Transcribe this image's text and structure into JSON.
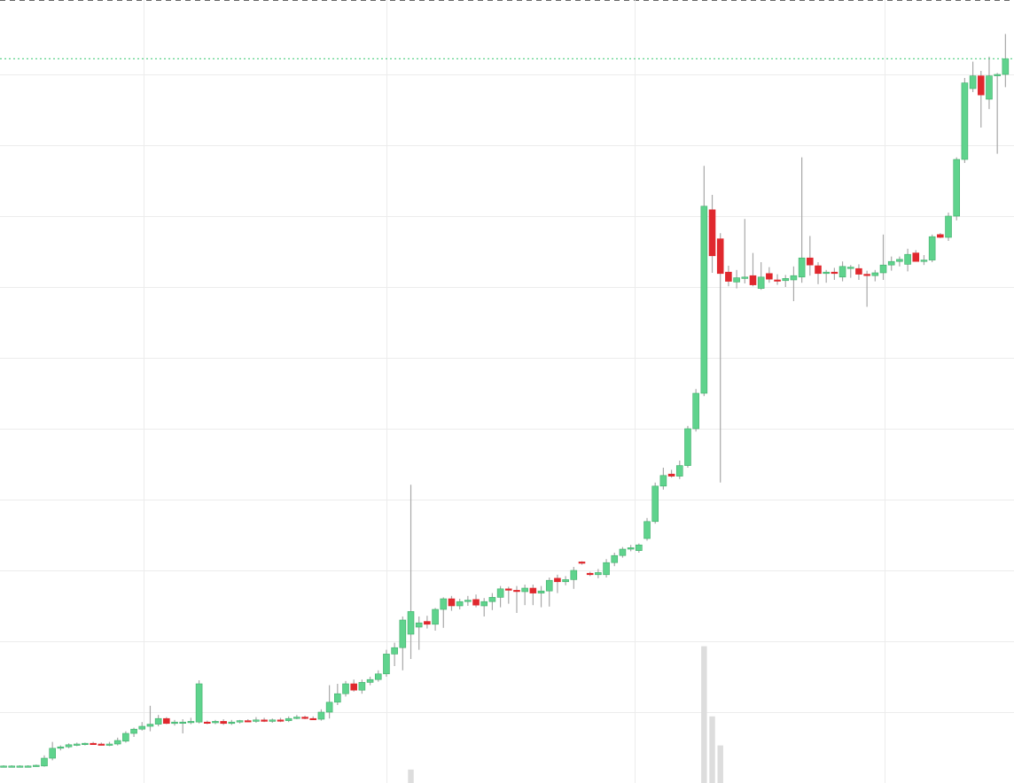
{
  "chart_data": {
    "type": "candlestick",
    "x": [
      0,
      1,
      2,
      3,
      4,
      5,
      6,
      7,
      8,
      9,
      10,
      11,
      12,
      13,
      14,
      15,
      16,
      17,
      18,
      19,
      20,
      21,
      22,
      23,
      24,
      25,
      26,
      27,
      28,
      29,
      30,
      31,
      32,
      33,
      34,
      35,
      36,
      37,
      38,
      39,
      40,
      41,
      42,
      43,
      44,
      45,
      46,
      47,
      48,
      49,
      50,
      51,
      52,
      53,
      54,
      55,
      56,
      57,
      58,
      59,
      60,
      61,
      62,
      63,
      64,
      65,
      66,
      67,
      68,
      69,
      70,
      71,
      72,
      73,
      74,
      75,
      76,
      77,
      78,
      79,
      80,
      81,
      82,
      83,
      84,
      85,
      86,
      87,
      88,
      89,
      90,
      91,
      92,
      93,
      94,
      95,
      96,
      97,
      98,
      99,
      100,
      101,
      102,
      103,
      104,
      105,
      106,
      107,
      108,
      109,
      110,
      111,
      112,
      113,
      114,
      115,
      116,
      117,
      118,
      119,
      120,
      121,
      122,
      123
    ],
    "open": [
      2.4,
      2.4,
      2.4,
      2.4,
      2.4,
      2.4,
      3.5,
      4.9,
      5.1,
      5.4,
      5.5,
      5.6,
      5.5,
      5.4,
      5.5,
      5.9,
      7.0,
      7.6,
      8.0,
      8.3,
      9.1,
      8.4,
      8.6,
      8.6,
      8.6,
      8.6,
      8.5,
      8.7,
      8.4,
      8.6,
      8.8,
      8.7,
      8.9,
      8.7,
      8.9,
      8.8,
      9.1,
      9.3,
      9.1,
      9.0,
      10.0,
      11.4,
      12.6,
      14.0,
      13.1,
      14.2,
      14.6,
      15.4,
      18.2,
      19.1,
      21.0,
      22.0,
      22.8,
      22.4,
      24.5,
      26.0,
      25.0,
      25.6,
      25.9,
      25.0,
      25.6,
      26.2,
      27.4,
      27.2,
      27.0,
      27.5,
      26.8,
      27.1,
      28.9,
      28.4,
      28.7,
      31.2,
      29.6,
      29.4,
      29.4,
      31.1,
      32.1,
      33.0,
      32.8,
      34.5,
      36.9,
      41.9,
      43.6,
      43.3,
      44.8,
      50.0,
      55.0,
      80.9,
      76.8,
      72.1,
      70.7,
      71.2,
      71.6,
      69.8,
      71.9,
      71.0,
      70.9,
      71.0,
      71.4,
      74.1,
      73.0,
      71.9,
      72.1,
      71.4,
      72.6,
      72.6,
      71.8,
      71.6,
      72.0,
      73.1,
      73.6,
      73.2,
      74.8,
      73.6,
      73.8,
      77.4,
      77.0,
      80.0,
      88.0,
      98.0,
      99.8,
      96.5,
      99.8,
      100.0
    ],
    "high": [
      2.5,
      2.5,
      2.5,
      2.5,
      2.6,
      3.9,
      5.8,
      5.3,
      5.6,
      5.7,
      5.7,
      5.8,
      5.7,
      5.8,
      6.4,
      7.3,
      7.8,
      8.6,
      10.9,
      9.6,
      9.3,
      8.9,
      9.0,
      9.2,
      14.5,
      8.8,
      8.9,
      9.0,
      8.9,
      8.9,
      9.0,
      9.3,
      9.2,
      9.1,
      9.2,
      9.4,
      9.6,
      9.5,
      9.4,
      10.4,
      13.8,
      14.0,
      14.4,
      14.6,
      14.6,
      15.0,
      15.9,
      18.8,
      19.8,
      23.5,
      42.1,
      23.5,
      23.6,
      24.7,
      26.2,
      26.4,
      26.0,
      26.4,
      26.6,
      26.1,
      26.8,
      27.8,
      27.7,
      27.8,
      28.0,
      28.0,
      27.8,
      29.0,
      29.4,
      29.2,
      30.5,
      31.3,
      29.8,
      30.2,
      31.6,
      32.5,
      33.3,
      33.6,
      33.8,
      37.4,
      42.4,
      44.5,
      44.2,
      45.5,
      50.4,
      55.6,
      87.1,
      83.0,
      77.6,
      73.0,
      72.4,
      79.6,
      74.8,
      73.5,
      72.8,
      71.8,
      71.7,
      72.9,
      88.3,
      77.2,
      73.5,
      72.4,
      72.7,
      73.6,
      73.1,
      73.2,
      72.3,
      72.4,
      77.4,
      74.3,
      74.3,
      75.4,
      75.2,
      74.5,
      77.4,
      77.6,
      80.5,
      88.3,
      99.5,
      101.8,
      100.5,
      102.5,
      100.2,
      105.7
    ],
    "low": [
      2.3,
      2.3,
      2.3,
      2.3,
      2.3,
      2.3,
      3.2,
      4.6,
      4.9,
      5.2,
      5.3,
      5.4,
      5.3,
      5.2,
      5.3,
      5.7,
      6.5,
      7.4,
      7.3,
      8.0,
      8.3,
      8.1,
      7.0,
      8.3,
      8.4,
      8.3,
      8.3,
      8.2,
      8.2,
      8.4,
      8.6,
      8.5,
      8.6,
      8.5,
      8.6,
      8.6,
      9.0,
      9.0,
      8.9,
      8.8,
      9.1,
      11.0,
      12.2,
      12.9,
      12.6,
      13.8,
      14.3,
      15.0,
      16.5,
      15.9,
      17.5,
      18.8,
      21.8,
      21.5,
      21.9,
      24.3,
      24.5,
      25.0,
      24.8,
      23.5,
      24.4,
      24.8,
      25.3,
      24.0,
      25.1,
      25.1,
      24.8,
      24.9,
      26.8,
      27.9,
      27.4,
      30.8,
      29.2,
      28.9,
      29.0,
      30.6,
      31.8,
      32.7,
      32.5,
      34.2,
      36.6,
      41.4,
      43.1,
      42.9,
      44.5,
      49.6,
      54.6,
      72.0,
      42.4,
      70.1,
      69.8,
      70.5,
      70.1,
      69.6,
      70.6,
      70.3,
      70.0,
      68.0,
      70.6,
      71.6,
      70.4,
      70.6,
      71.0,
      70.8,
      71.3,
      71.0,
      67.2,
      70.8,
      71.0,
      72.3,
      72.9,
      72.2,
      73.6,
      73.1,
      73.5,
      76.9,
      76.5,
      79.4,
      87.5,
      97.5,
      92.5,
      95.1,
      88.8,
      98.2
    ],
    "close": [
      2.4,
      2.4,
      2.4,
      2.4,
      2.5,
      3.5,
      4.9,
      5.1,
      5.4,
      5.5,
      5.6,
      5.5,
      5.4,
      5.5,
      6.0,
      7.0,
      7.6,
      8.0,
      8.3,
      9.1,
      8.4,
      8.6,
      8.6,
      8.7,
      14.0,
      8.5,
      8.7,
      8.4,
      8.6,
      8.8,
      8.7,
      8.9,
      8.7,
      8.9,
      8.8,
      9.1,
      9.3,
      9.1,
      9.0,
      10.0,
      11.4,
      12.6,
      14.0,
      13.1,
      14.2,
      14.6,
      15.4,
      18.2,
      19.1,
      23.0,
      24.2,
      22.6,
      22.4,
      24.5,
      26.0,
      25.0,
      25.6,
      25.8,
      25.1,
      25.6,
      26.2,
      27.4,
      27.2,
      27.1,
      27.5,
      26.8,
      27.1,
      28.6,
      28.4,
      28.7,
      30.0,
      31.0,
      29.4,
      29.7,
      31.1,
      32.1,
      33.0,
      33.2,
      33.6,
      36.9,
      41.9,
      43.4,
      43.3,
      44.8,
      50.0,
      55.0,
      81.4,
      74.4,
      71.9,
      70.8,
      71.3,
      71.4,
      70.3,
      71.4,
      71.1,
      70.9,
      71.2,
      71.6,
      74.1,
      73.1,
      71.9,
      72.1,
      71.9,
      72.9,
      72.8,
      71.8,
      71.6,
      72.0,
      73.1,
      73.6,
      73.9,
      74.6,
      73.6,
      73.8,
      77.1,
      77.0,
      80.0,
      88.0,
      98.8,
      99.8,
      97.1,
      99.8,
      100.0,
      102.2
    ],
    "volume": {
      "x": [
        50,
        86,
        87,
        88
      ],
      "values": [
        1.9,
        19.3,
        9.4,
        5.3
      ],
      "color": "#dddddd"
    },
    "xlim": [
      -0.44,
      124.05
    ],
    "ylim": [
      0,
      110.5
    ],
    "y2lim": [
      0,
      110.5
    ],
    "xticks": [
      17.2,
      47.0,
      77.5,
      108.2
    ],
    "yticks": [
      10,
      20,
      30,
      40,
      50,
      60,
      70,
      80,
      90,
      100
    ],
    "grid": true,
    "up_color": "#5fd38d",
    "up_border": "#3fae6a",
    "down_color": "#e0282e",
    "wick_color": "#a8a8a8",
    "last_price_line": true,
    "last_price_color": "#5fd38d"
  }
}
